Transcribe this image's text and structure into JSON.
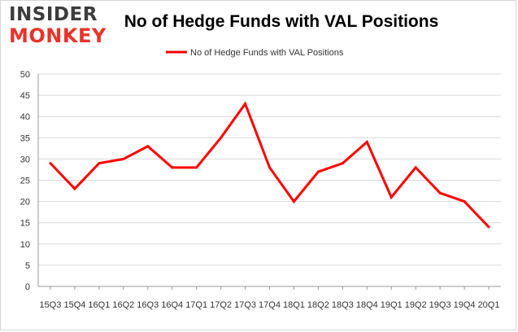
{
  "logo": {
    "line1": "INSIDER",
    "line2": "MONKEY"
  },
  "chart_data": {
    "type": "line",
    "title": "No of Hedge Funds with VAL Positions",
    "xlabel": "",
    "ylabel": "",
    "categories": [
      "15Q3",
      "15Q4",
      "16Q1",
      "16Q2",
      "16Q3",
      "16Q4",
      "17Q1",
      "17Q2",
      "17Q3",
      "17Q4",
      "18Q1",
      "18Q2",
      "18Q3",
      "18Q4",
      "19Q1",
      "19Q2",
      "19Q3",
      "19Q4",
      "20Q1"
    ],
    "series": [
      {
        "name": "No of Hedge Funds with VAL Positions",
        "values": [
          29,
          23,
          29,
          30,
          33,
          28,
          28,
          35,
          43,
          28,
          20,
          27,
          29,
          34,
          21,
          28,
          22,
          20,
          14
        ],
        "color": "#ff0000"
      }
    ],
    "ylim": [
      0,
      50
    ],
    "yticks": [
      0,
      5,
      10,
      15,
      20,
      25,
      30,
      35,
      40,
      45,
      50
    ],
    "grid": "horizontal",
    "legend": "top-center"
  }
}
